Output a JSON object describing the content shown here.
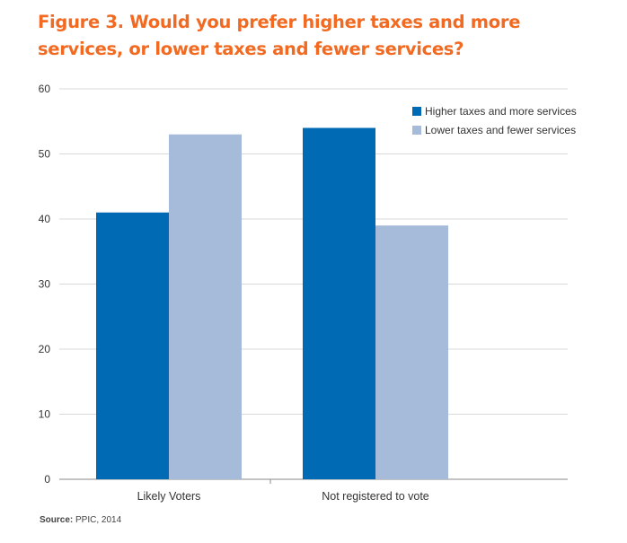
{
  "figure": {
    "title": "Figure 3. Would you prefer higher taxes and more services, or lower taxes and fewer services?",
    "source_label": "Source:",
    "source_text": "PPIC, 2014"
  },
  "chart_data": {
    "type": "bar",
    "categories": [
      "Likely Voters",
      "Not registered to vote"
    ],
    "series": [
      {
        "name": "Higher taxes and more services",
        "values": [
          41,
          54
        ],
        "color": "#006bb4"
      },
      {
        "name": "Lower taxes and fewer services",
        "values": [
          53,
          39
        ],
        "color": "#a6bad9"
      }
    ],
    "ylim": [
      0,
      60
    ],
    "yticks": [
      0,
      10,
      20,
      30,
      40,
      50,
      60
    ],
    "grid": true,
    "legend_position": "top-right",
    "xlabel": "",
    "ylabel": ""
  }
}
